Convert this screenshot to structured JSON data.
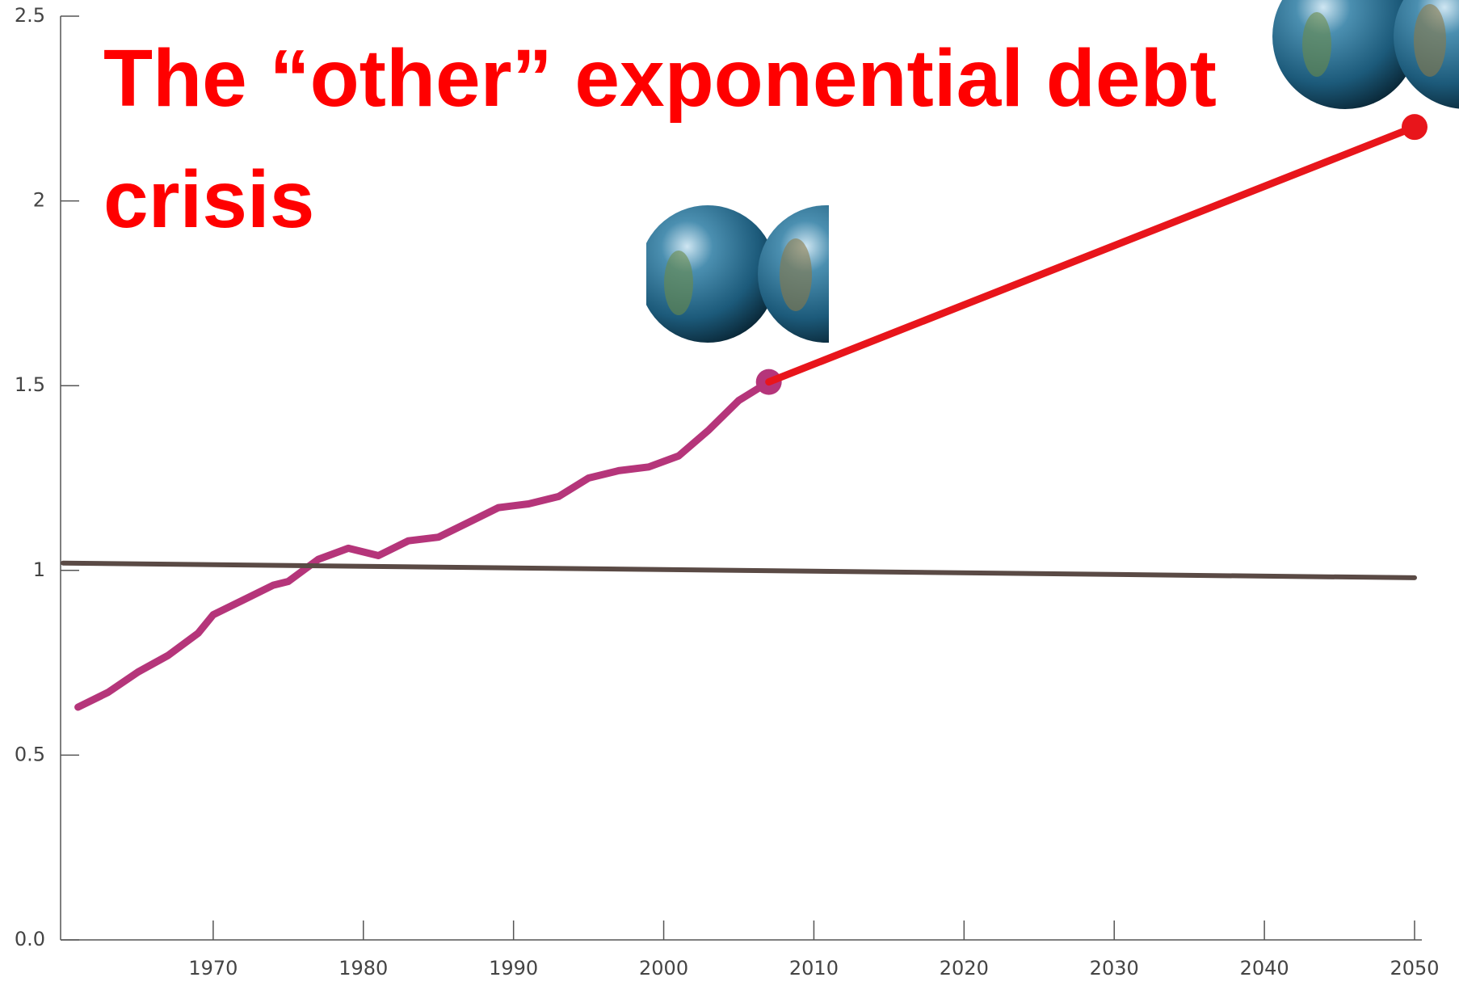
{
  "chart_data": {
    "type": "line",
    "title": "The “other” exponential debt crisis",
    "xlim": [
      1960,
      2050
    ],
    "xticks": [
      1970,
      1980,
      1990,
      2000,
      2010,
      2020,
      2030,
      2040,
      2050
    ],
    "ylim": [
      0,
      2.5
    ],
    "yticks": [
      {
        "value": 0,
        "label": "0.0"
      },
      0.5,
      1,
      1.5,
      2,
      2.5
    ],
    "series": [
      {
        "color": "#b5357a",
        "x": [
          1961,
          1963,
          1965,
          1967,
          1969,
          1970,
          1972,
          1974,
          1975,
          1977,
          1979,
          1981,
          1983,
          1985,
          1987,
          1989,
          1991,
          1993,
          1995,
          1997,
          1999,
          2001,
          2003,
          2005,
          2007
        ],
        "values": [
          0.63,
          0.67,
          0.725,
          0.77,
          0.83,
          0.88,
          0.92,
          0.96,
          0.97,
          1.03,
          1.06,
          1.04,
          1.08,
          1.09,
          1.13,
          1.17,
          1.18,
          1.2,
          1.25,
          1.27,
          1.28,
          1.31,
          1.38,
          1.46,
          1.51
        ]
      },
      {
        "color": "#e8151b",
        "x": [
          2007,
          2050
        ],
        "values": [
          1.51,
          2.2
        ]
      },
      {
        "color": "#5a4a45",
        "x": [
          1960,
          2050
        ],
        "values": [
          1.02,
          0.98
        ]
      }
    ]
  }
}
